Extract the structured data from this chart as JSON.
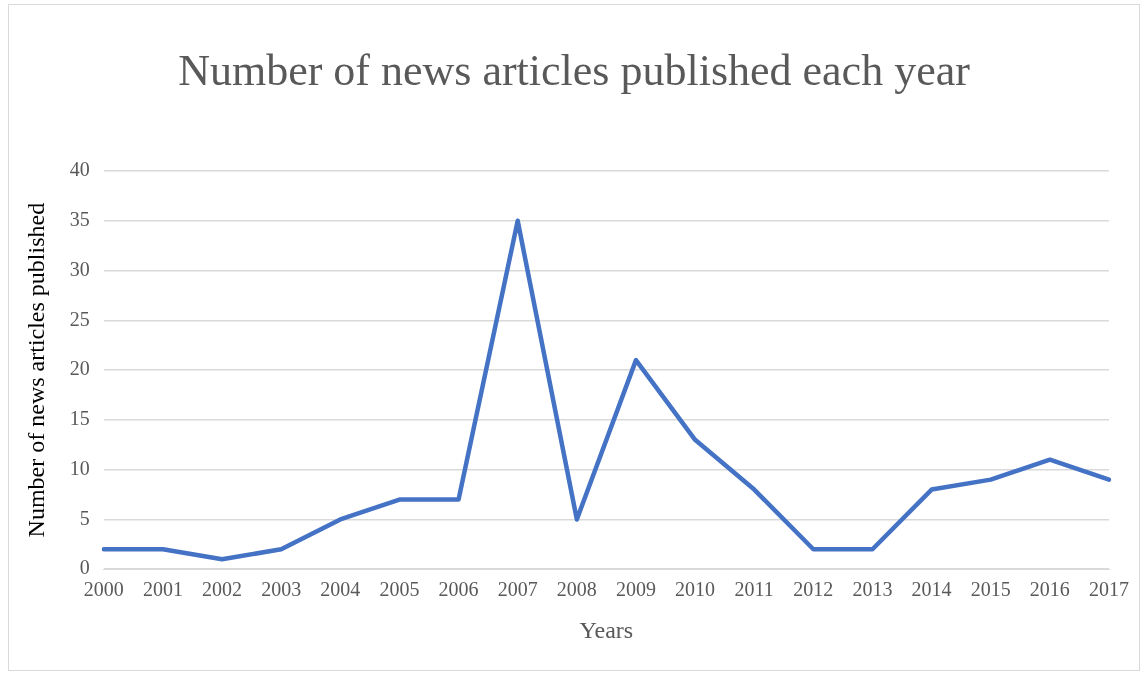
{
  "chart_data": {
    "type": "line",
    "title": "Number of news articles published each year",
    "xlabel": "Years",
    "ylabel": "Number of news articles published",
    "categories": [
      "2000",
      "2001",
      "2002",
      "2003",
      "2004",
      "2005",
      "2006",
      "2007",
      "2008",
      "2009",
      "2010",
      "2011",
      "2012",
      "2013",
      "2014",
      "2015",
      "2016",
      "2017"
    ],
    "series": [
      {
        "color": "#4472c4",
        "values": [
          2,
          2,
          1,
          2,
          5,
          7,
          7,
          35,
          5,
          21,
          13,
          8,
          2,
          2,
          8,
          9,
          11,
          9
        ]
      }
    ],
    "ylim": [
      0,
      40
    ],
    "yticks": [
      0,
      5,
      10,
      15,
      20,
      25,
      30,
      35,
      40
    ],
    "grid": "y",
    "legend": false,
    "marker": "none",
    "line_style": "solid"
  }
}
